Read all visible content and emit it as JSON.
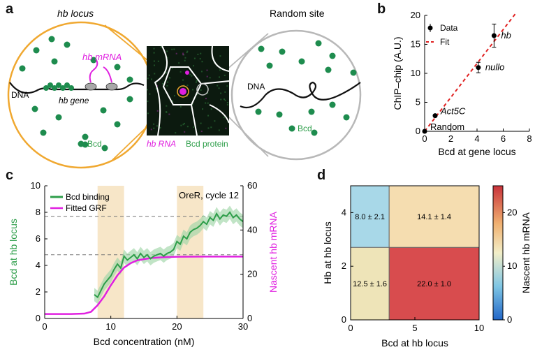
{
  "panels": {
    "a": {
      "letter": "a",
      "left_title": "hb locus",
      "right_title": "Random site",
      "labels": {
        "hb_mrna": "hb mRNA",
        "dna_left": "DNA",
        "hb_gene": "hb gene",
        "bcd_left": "Bcd",
        "dna_right": "DNA",
        "bcd_right": "Bcd",
        "hb_rna": "hb RNA",
        "bcd_protein": "Bcd protein"
      },
      "colors": {
        "circle_left": "#F0A830",
        "circle_right": "#B8B8B8",
        "bcd": "#1E8C4E",
        "mrna": "#E020E0"
      }
    },
    "b": {
      "letter": "b"
    },
    "c": {
      "letter": "c"
    },
    "d": {
      "letter": "d"
    }
  },
  "chart_data": [
    {
      "id": "b",
      "type": "scatter",
      "title": "",
      "xlabel": "Bcd at gene locus",
      "ylabel": "ChIP–chip (A.U.)",
      "xlim": [
        0,
        8
      ],
      "ylim": [
        0,
        20
      ],
      "xticks": [
        0,
        2,
        4,
        6,
        8
      ],
      "yticks": [
        0,
        5,
        10,
        15,
        20
      ],
      "legend": {
        "position": "top-left",
        "entries": [
          "Data",
          "Fit"
        ]
      },
      "points": [
        {
          "label": "Random",
          "x": 0,
          "y": 0,
          "err": 0
        },
        {
          "label": "Act5C",
          "x": 0.8,
          "y": 2.7,
          "err": 0
        },
        {
          "label": "nullo",
          "x": 4.1,
          "y": 11.0,
          "err": 0.9
        },
        {
          "label": "hb",
          "x": 5.3,
          "y": 16.5,
          "err": 2.0
        }
      ],
      "fit": {
        "x": [
          0,
          7.0
        ],
        "y": [
          0,
          21.5
        ]
      },
      "colors": {
        "data": "#000000",
        "fit": "#E02020"
      }
    },
    {
      "id": "c",
      "type": "line",
      "title": "",
      "annotation": "OreR, cycle 12",
      "xlabel": "Bcd concentration (nM)",
      "ylabel_left": "Bcd at hb locus",
      "ylabel_right": "Nascent hb mRNA",
      "xlim": [
        0,
        30
      ],
      "ylim_left": [
        0,
        10
      ],
      "ylim_right": [
        0,
        60
      ],
      "xticks": [
        0,
        10,
        20,
        30
      ],
      "yticks_left": [
        0,
        2,
        4,
        6,
        8,
        10
      ],
      "yticks_right": [
        0,
        20,
        40,
        60
      ],
      "legend": {
        "position": "top-left",
        "entries": [
          "Bcd binding",
          "Fitted GRF"
        ]
      },
      "shaded_x_ranges": [
        [
          8,
          12
        ],
        [
          20,
          24
        ]
      ],
      "dashed_levels_left": [
        4.8,
        7.7
      ],
      "series": [
        {
          "name": "Bcd binding",
          "axis": "left",
          "x": [
            7.5,
            8.0,
            8.5,
            9.0,
            9.5,
            10.0,
            10.5,
            11.0,
            11.5,
            12.0,
            12.5,
            13.0,
            13.5,
            14.0,
            14.5,
            15.0,
            15.5,
            16.0,
            16.5,
            17.0,
            17.5,
            18.0,
            18.5,
            19.0,
            19.5,
            20.0,
            20.5,
            21.0,
            21.5,
            22.0,
            22.5,
            23.0,
            23.5,
            24.0,
            24.5,
            25.0,
            25.5,
            26.0,
            26.5,
            27.0,
            27.5,
            28.0,
            28.5,
            29.0,
            29.5,
            30.0
          ],
          "y": [
            1.8,
            1.6,
            2.1,
            2.6,
            2.9,
            3.2,
            3.7,
            4.1,
            3.8,
            4.7,
            4.4,
            4.6,
            4.8,
            4.5,
            4.9,
            4.6,
            4.8,
            4.5,
            4.7,
            4.8,
            4.9,
            4.7,
            4.9,
            5.0,
            5.2,
            5.8,
            5.6,
            6.2,
            6.0,
            6.5,
            6.7,
            6.8,
            7.0,
            7.3,
            7.1,
            7.6,
            7.4,
            7.9,
            7.5,
            7.8,
            7.7,
            8.0,
            7.6,
            7.8,
            7.5,
            7.3
          ],
          "band": 0.5,
          "color": "#2E9E4A"
        },
        {
          "name": "Fitted GRF",
          "axis": "right",
          "x": [
            0,
            4,
            6,
            7,
            8,
            9,
            10,
            11,
            12,
            13,
            14,
            16,
            18,
            20,
            24,
            30
          ],
          "y": [
            2,
            2,
            2.2,
            3,
            6,
            10,
            15,
            19.5,
            23,
            25,
            26.3,
            27.3,
            27.7,
            27.9,
            28,
            28
          ],
          "color": "#E020E0"
        }
      ]
    },
    {
      "id": "d",
      "type": "heatmap",
      "title": "",
      "xlabel": "Bcd at hb locus",
      "ylabel": "Hb at hb locus",
      "colorbar_label": "Nascent hb mRNA",
      "xlim": [
        0,
        10
      ],
      "ylim": [
        0,
        5
      ],
      "xticks": [
        0,
        5,
        10
      ],
      "yticks": [
        0,
        2,
        4
      ],
      "colorbar_ticks": [
        0,
        10,
        20
      ],
      "colorbar_range": [
        0,
        25
      ],
      "x_edges": [
        0,
        3,
        10
      ],
      "y_edges": [
        0,
        2.7,
        5
      ],
      "cells": [
        {
          "row": "top",
          "col": "left",
          "value": 8.0,
          "label": "8.0 ± 2.1"
        },
        {
          "row": "top",
          "col": "right",
          "value": 14.1,
          "label": "14.1 ± 1.4"
        },
        {
          "row": "bottom",
          "col": "left",
          "value": 12.5,
          "label": "12.5 ± 1.6"
        },
        {
          "row": "bottom",
          "col": "right",
          "value": 22.0,
          "label": "22.0 ± 1.0"
        }
      ],
      "cell_colors": {
        "8.0": "#A8D8E8",
        "14.1": "#F5DDB0",
        "12.5": "#EEE4B8",
        "22.0": "#D84C4E"
      }
    }
  ]
}
